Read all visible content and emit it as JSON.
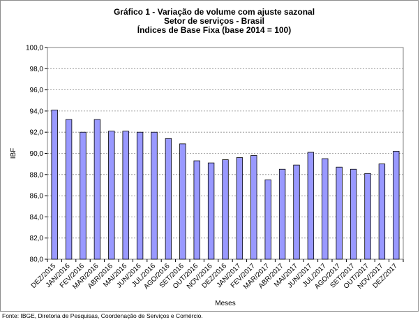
{
  "chart_data": {
    "type": "bar",
    "title_lines": [
      "Gráfico 1 - Variação de volume com ajuste sazonal",
      "Setor de serviços  - Brasil",
      "Índices de Base Fixa  (base 2014 = 100)"
    ],
    "xlabel": "Meses",
    "ylabel": "IBF",
    "ylim": [
      80,
      100
    ],
    "yticks": [
      "80,0",
      "82,0",
      "84,0",
      "86,0",
      "88,0",
      "90,0",
      "92,0",
      "94,0",
      "96,0",
      "98,0",
      "100,0"
    ],
    "grid": true,
    "bar_color": "#9999ff",
    "categories": [
      "DEZ/2015",
      "JAN/2016",
      "FEV/2016",
      "MAR/2016",
      "ABR/2016",
      "MAI/2016",
      "JUN/2016",
      "JUL/2016",
      "AGO/2016",
      "SET/2016",
      "OUT/2016",
      "NOV/2016",
      "DEZ/2016",
      "JAN/2017",
      "FEV/2017",
      "MAR/2017",
      "ABR/2017",
      "MAI/2017",
      "JUN/2017",
      "JUL/2017",
      "AGO/2017",
      "SET/2017",
      "OUT/2017",
      "NOV/2017",
      "DEZ/2017"
    ],
    "values": [
      94.1,
      93.2,
      92.0,
      93.2,
      92.1,
      92.1,
      92.0,
      92.0,
      91.4,
      90.9,
      89.3,
      89.1,
      89.4,
      89.6,
      89.8,
      87.5,
      88.5,
      88.9,
      90.1,
      89.5,
      88.7,
      88.5,
      88.1,
      89.0,
      90.2
    ]
  },
  "source_note": "Fonte: IBGE,  Diretoria de Pesquisas, Coordenação de Serviços e Comércio."
}
